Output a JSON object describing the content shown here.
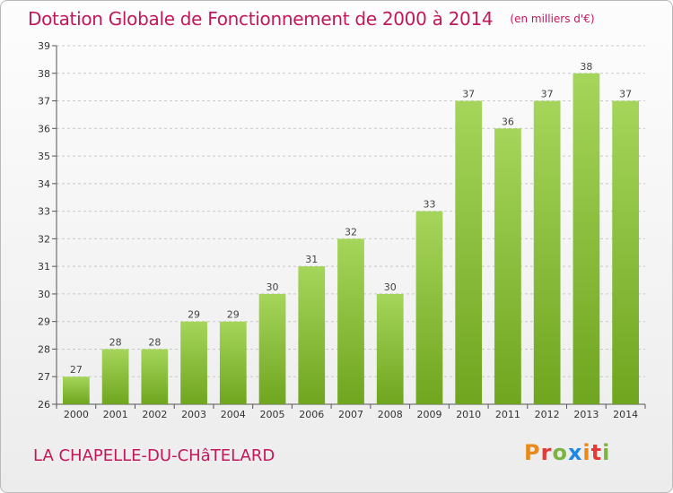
{
  "header": {
    "title": "Dotation Globale de Fonctionnement de 2000 à 2014",
    "subtitle": "(en milliers d'€)"
  },
  "footer": {
    "commune": "LA CHAPELLE-DU-CHâTELARD",
    "logo_text": "Proxiti"
  },
  "colors": {
    "bar_light": "#a5d55a",
    "bar_dark": "#6fa51f",
    "title": "#c2185b"
  },
  "chart_data": {
    "type": "bar",
    "title": "Dotation Globale de Fonctionnement de 2000 à 2014",
    "subtitle": "(en milliers d'€)",
    "categories": [
      "2000",
      "2001",
      "2002",
      "2003",
      "2004",
      "2005",
      "2006",
      "2007",
      "2008",
      "2009",
      "2010",
      "2011",
      "2012",
      "2013",
      "2014"
    ],
    "values": [
      27,
      28,
      28,
      29,
      29,
      30,
      31,
      32,
      30,
      33,
      37,
      36,
      37,
      38,
      37
    ],
    "xlabel": "",
    "ylabel": "",
    "ylim": [
      26,
      39
    ],
    "yticks": [
      26,
      27,
      28,
      29,
      30,
      31,
      32,
      33,
      34,
      35,
      36,
      37,
      38,
      39
    ],
    "grid": true,
    "data_labels": true
  }
}
